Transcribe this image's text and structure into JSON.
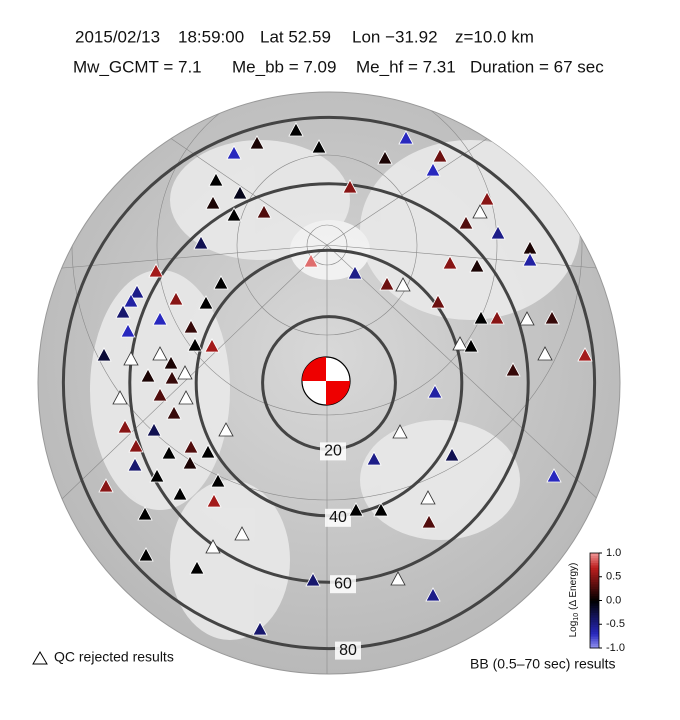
{
  "header": {
    "line1": [
      "2015/02/13",
      "18:59:00",
      "Lat 52.59",
      "Lon −31.92",
      "z=10.0 km"
    ],
    "line2": [
      "Mw_GCMT = 7.1",
      "Me_bb = 7.09",
      "Me_hf = 7.31",
      "Duration = 67 sec"
    ]
  },
  "map": {
    "rings": [
      20,
      40,
      60,
      80
    ],
    "stations": {
      "values": [
        0.0,
        -0.7,
        0.1,
        0.0,
        -0.7,
        0.4,
        -0.7,
        0.1,
        0.0,
        0.5,
        0.1,
        -0.1,
        0.3,
        0.0,
        0.5,
        null,
        0.3,
        -0.5,
        0.1,
        -0.6,
        -0.3,
        0.9,
        -0.5,
        0.4,
        null,
        0.5,
        0.1,
        0.6,
        -0.5,
        -0.6,
        0.5,
        0.0,
        0.0,
        0.4,
        0.0,
        0.5,
        null,
        0.2,
        -0.4,
        -0.7,
        0.2,
        -0.7,
        -0.2,
        null,
        null,
        0.0,
        0.6,
        null,
        0.0,
        null,
        0.6,
        0.1,
        0.1,
        0.2,
        null,
        0.2,
        null,
        0.3,
        null,
        0.2,
        -0.6,
        null,
        0.5,
        -0.3,
        null,
        0.5,
        0.0,
        0.1,
        0.0,
        0.3,
        -0.5,
        -0.3,
        -0.7,
        -0.4,
        0.5,
        0.0,
        0.0,
        0.0,
        0.6,
        null,
        0.0,
        0.0,
        0.0,
        0.3,
        null,
        null,
        0.0,
        0.0,
        -0.4,
        null,
        -0.5,
        -0.4
      ]
    }
  },
  "colorbar": {
    "label": [
      "Log",
      "10",
      "(Δ Energy)"
    ],
    "lim": [
      -1,
      1
    ],
    "ticks": [
      {
        "value": 1,
        "label": "1.0"
      },
      {
        "value": 0.5,
        "label": "0.5"
      },
      {
        "value": 0,
        "label": "0.0"
      },
      {
        "value": -0.5,
        "label": "-0.5"
      },
      {
        "value": -1,
        "label": "-1.0"
      }
    ]
  },
  "legend": {
    "qc_rejected": "QC rejected results",
    "bb_label": "BB (0.5–70 sec) results"
  }
}
